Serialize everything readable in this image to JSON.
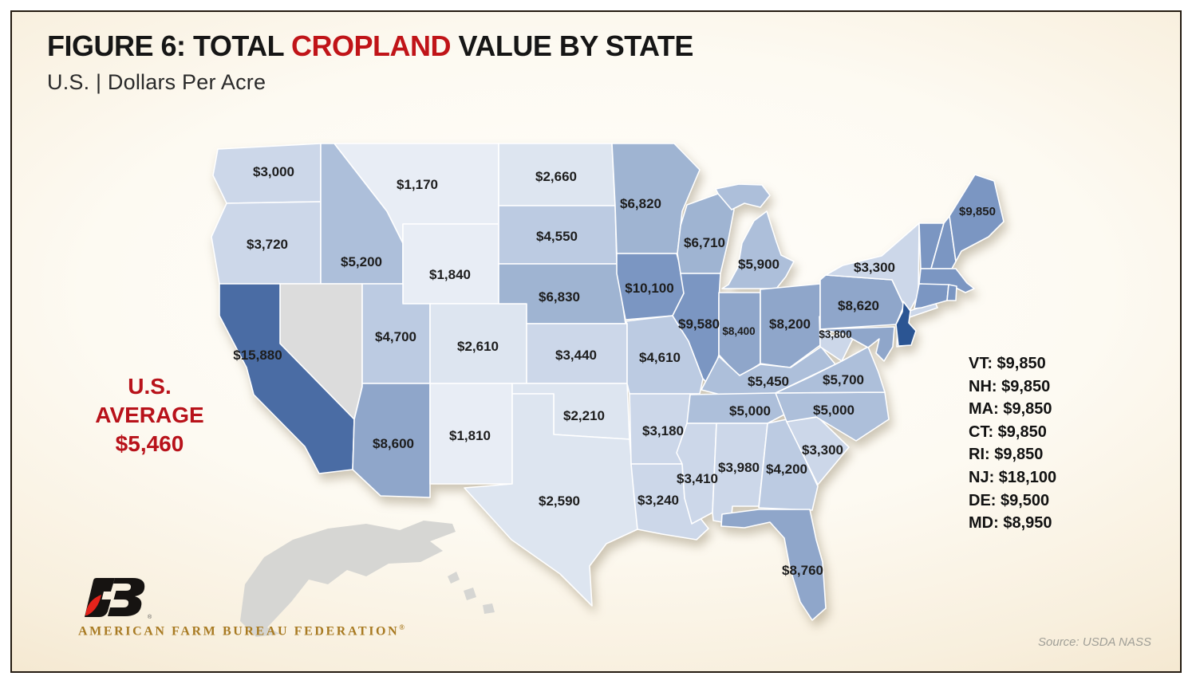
{
  "page": {
    "title": {
      "prefix": "FIGURE 6: TOTAL ",
      "highlight": "CROPLAND",
      "suffix": " VALUE BY STATE"
    },
    "subtitle": "U.S. | Dollars Per Acre",
    "average": {
      "lines": [
        "U.S.",
        "AVERAGE",
        "$5,460"
      ]
    },
    "logo": {
      "org": "AMERICAN FARM BUREAU FEDERATION",
      "reg": "®"
    },
    "source": "Source: USDA NASS"
  },
  "colors": {
    "title_highlight": "#c01418",
    "average_red": "#b8121a",
    "logo_gold": "#a87a22",
    "logo_red": "#e5231b",
    "logo_black": "#161311",
    "no_data": "#dcdcdc",
    "label": "#1d1d1d",
    "scale": [
      "#e8edf5",
      "#dde5f0",
      "#ccd7e9",
      "#bccbe2",
      "#adbfda",
      "#9fb4d2",
      "#8fa6ca",
      "#7b96c2",
      "#4a6ca4",
      "#2b5593"
    ]
  },
  "chart_data": {
    "type": "choropleth",
    "title": "FIGURE 6: TOTAL CROPLAND VALUE BY STATE",
    "region": "U.S.",
    "unit": "Dollars Per Acre",
    "us_average": 5460,
    "scale_thresholds": [
      2000,
      3000,
      4000,
      5000,
      6000,
      7500,
      9000,
      11000,
      17000
    ],
    "no_data_states": [
      "NV"
    ],
    "states": [
      {
        "code": "WA",
        "value": 3000,
        "label": "$3,000"
      },
      {
        "code": "OR",
        "value": 3720,
        "label": "$3,720"
      },
      {
        "code": "CA",
        "value": 15880,
        "label": "$15,880"
      },
      {
        "code": "NV",
        "value": null,
        "label": ""
      },
      {
        "code": "ID",
        "value": 5200,
        "label": "$5,200"
      },
      {
        "code": "MT",
        "value": 1170,
        "label": "$1,170"
      },
      {
        "code": "WY",
        "value": 1840,
        "label": "$1,840"
      },
      {
        "code": "UT",
        "value": 4700,
        "label": "$4,700"
      },
      {
        "code": "CO",
        "value": 2610,
        "label": "$2,610"
      },
      {
        "code": "AZ",
        "value": 8600,
        "label": "$8,600"
      },
      {
        "code": "NM",
        "value": 1810,
        "label": "$1,810"
      },
      {
        "code": "ND",
        "value": 2660,
        "label": "$2,660"
      },
      {
        "code": "SD",
        "value": 4550,
        "label": "$4,550"
      },
      {
        "code": "NE",
        "value": 6830,
        "label": "$6,830"
      },
      {
        "code": "KS",
        "value": 3440,
        "label": "$3,440"
      },
      {
        "code": "OK",
        "value": 2210,
        "label": "$2,210"
      },
      {
        "code": "TX",
        "value": 2590,
        "label": "$2,590"
      },
      {
        "code": "MN",
        "value": 6820,
        "label": "$6,820"
      },
      {
        "code": "IA",
        "value": 10100,
        "label": "$10,100"
      },
      {
        "code": "MO",
        "value": 4610,
        "label": "$4,610"
      },
      {
        "code": "AR",
        "value": 3180,
        "label": "$3,180"
      },
      {
        "code": "LA",
        "value": 3240,
        "label": "$3,240"
      },
      {
        "code": "WI",
        "value": 6710,
        "label": "$6,710"
      },
      {
        "code": "IL",
        "value": 9580,
        "label": "$9,580"
      },
      {
        "code": "MS",
        "value": 3410,
        "label": "$3,410"
      },
      {
        "code": "MI",
        "value": 5900,
        "label": "$5,900"
      },
      {
        "code": "IN",
        "value": 8400,
        "label": "$8,400"
      },
      {
        "code": "OH",
        "value": 8200,
        "label": "$8,200"
      },
      {
        "code": "KY",
        "value": 5450,
        "label": "$5,450"
      },
      {
        "code": "TN",
        "value": 5000,
        "label": "$5,000"
      },
      {
        "code": "AL",
        "value": 3980,
        "label": "$3,980"
      },
      {
        "code": "GA",
        "value": 4200,
        "label": "$4,200"
      },
      {
        "code": "FL",
        "value": 8760,
        "label": "$8,760"
      },
      {
        "code": "SC",
        "value": 3300,
        "label": "$3,300"
      },
      {
        "code": "NC",
        "value": 5000,
        "label": "$5,000"
      },
      {
        "code": "VA",
        "value": 5700,
        "label": "$5,700"
      },
      {
        "code": "WV",
        "value": 3800,
        "label": "$3,800"
      },
      {
        "code": "PA",
        "value": 8620,
        "label": "$8,620"
      },
      {
        "code": "NY",
        "value": 3300,
        "label": "$3,300"
      },
      {
        "code": "NJ",
        "value": 18100,
        "label": ""
      },
      {
        "code": "ME",
        "value": 9850,
        "label": "$9,850"
      },
      {
        "code": "VT",
        "value": 9850,
        "label": ""
      },
      {
        "code": "NH",
        "value": 9850,
        "label": ""
      },
      {
        "code": "MA",
        "value": 9850,
        "label": ""
      },
      {
        "code": "CT",
        "value": 9850,
        "label": ""
      },
      {
        "code": "RI",
        "value": 9850,
        "label": ""
      },
      {
        "code": "DE",
        "value": 9500,
        "label": ""
      },
      {
        "code": "MD",
        "value": 8950,
        "label": ""
      }
    ],
    "callouts": [
      "VT: $9,850",
      "NH: $9,850",
      "MA: $9,850",
      "CT: $9,850",
      "RI: $9,850",
      "NJ: $18,100",
      "DE: $9,500",
      "MD: $8,950"
    ]
  }
}
